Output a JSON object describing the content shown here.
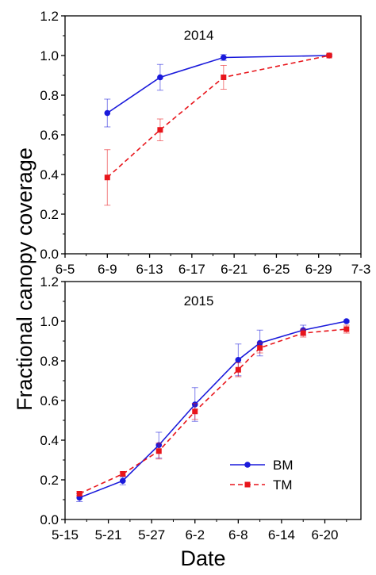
{
  "chart_data": {
    "type": "line",
    "ylabel": "Fractional canopy coverage",
    "xlabel": "Date",
    "panels": [
      {
        "title": "2014",
        "xlim": [
          "6-5",
          "7-3"
        ],
        "xticks": [
          "6-5",
          "6-9",
          "6-13",
          "6-17",
          "6-21",
          "6-25",
          "6-29",
          "7-3"
        ],
        "ylim": [
          0,
          1.2
        ],
        "yticks": [
          "0.0",
          "0.2",
          "0.4",
          "0.6",
          "0.8",
          "1.0",
          "1.2"
        ],
        "series": [
          {
            "name": "BM",
            "color": "#1a1adb",
            "marker": "circle",
            "dash": "solid",
            "x": [
              "6-9",
              "6-14",
              "6-20",
              "6-30"
            ],
            "y": [
              0.71,
              0.89,
              0.99,
              1.0
            ],
            "err": [
              0.07,
              0.065,
              0.015,
              0.005
            ]
          },
          {
            "name": "TM",
            "color": "#e8151b",
            "marker": "square",
            "dash": "dashed",
            "x": [
              "6-9",
              "6-14",
              "6-20",
              "6-30"
            ],
            "y": [
              0.385,
              0.625,
              0.89,
              1.0
            ],
            "err": [
              0.14,
              0.055,
              0.06,
              0.005
            ]
          }
        ]
      },
      {
        "title": "2015",
        "xlim": [
          "5-15",
          "6-25"
        ],
        "xticks": [
          "5-15",
          "5-21",
          "5-27",
          "6-2",
          "6-8",
          "6-14",
          "6-20"
        ],
        "ylim": [
          0,
          1.2
        ],
        "yticks": [
          "0.0",
          "0.2",
          "0.4",
          "0.6",
          "0.8",
          "1.0",
          "1.2"
        ],
        "legend_position": "lower-right",
        "series": [
          {
            "name": "BM",
            "color": "#1a1adb",
            "marker": "circle",
            "dash": "solid",
            "x": [
              "5-17",
              "5-23",
              "5-28",
              "6-2",
              "6-8",
              "6-11",
              "6-17",
              "6-23"
            ],
            "y": [
              0.11,
              0.195,
              0.375,
              0.58,
              0.805,
              0.89,
              0.955,
              1.0
            ],
            "err": [
              0.02,
              0.02,
              0.065,
              0.085,
              0.08,
              0.065,
              0.025,
              0.005
            ]
          },
          {
            "name": "TM",
            "color": "#e8151b",
            "marker": "square",
            "dash": "dashed",
            "x": [
              "5-17",
              "5-23",
              "5-28",
              "6-2",
              "6-8",
              "6-11",
              "6-17",
              "6-23"
            ],
            "y": [
              0.13,
              0.23,
              0.345,
              0.545,
              0.755,
              0.865,
              0.94,
              0.96
            ],
            "err": [
              0.01,
              0.01,
              0.04,
              0.04,
              0.035,
              0.025,
              0.02,
              0.02
            ]
          }
        ]
      }
    ]
  }
}
